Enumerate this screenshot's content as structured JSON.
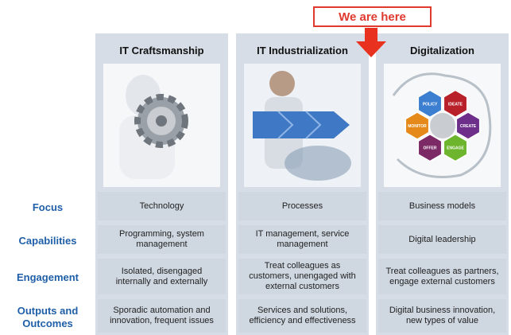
{
  "callout": "We are here",
  "row_labels": [
    "Focus",
    "Capabilities",
    "Engagement",
    "Outputs and Outcomes"
  ],
  "columns": [
    {
      "title": "IT Craftsmanship",
      "cells": [
        "Technology",
        "Programming, system management",
        "Isolated, disengaged internally and externally",
        "Sporadic automation and innovation, frequent issues"
      ]
    },
    {
      "title": "IT Industrialization",
      "cells": [
        "Processes",
        "IT management, service management",
        "Treat colleagues as customers, unengaged with external customers",
        "Services and solutions, efficiency and effectiveness"
      ]
    },
    {
      "title": "Digitalization",
      "cells": [
        "Business models",
        "Digital leadership",
        "Treat colleagues as partners, engage external customers",
        "Digital business innovation, new types of value"
      ]
    }
  ],
  "hexagons": [
    "POLICY",
    "IDEATE",
    "CREATE",
    "ENGAGE",
    "OFFER",
    "MONITOR"
  ]
}
